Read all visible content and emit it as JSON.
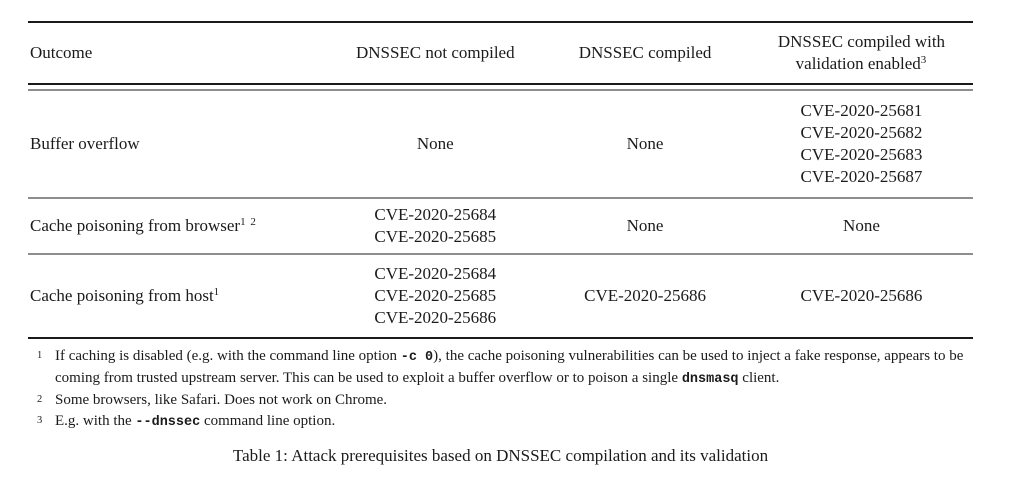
{
  "doc": {
    "caption": "Table 1: Attack prerequisites based on DNSSEC compilation and its validation"
  },
  "table": {
    "header": {
      "outcome": "Outcome",
      "not_compiled": "DNSSEC not compiled",
      "compiled": "DNSSEC compiled",
      "validation_line1": "DNSSEC compiled with",
      "validation_line2": "validation enabled",
      "validation_footnote_ref": "3"
    },
    "rows": [
      {
        "outcome": "Buffer overflow",
        "not_compiled": [
          "None"
        ],
        "compiled": [
          "None"
        ],
        "validation": [
          "CVE-2020-25681",
          "CVE-2020-25682",
          "CVE-2020-25683",
          "CVE-2020-25687"
        ]
      },
      {
        "outcome": "Cache poisoning from browser",
        "footnote_refs": "1 2",
        "not_compiled": [
          "CVE-2020-25684",
          "CVE-2020-25685"
        ],
        "compiled": [
          "None"
        ],
        "validation": [
          "None"
        ]
      },
      {
        "outcome": "Cache poisoning from host",
        "footnote_refs": "1",
        "not_compiled": [
          "CVE-2020-25684",
          "CVE-2020-25685",
          "CVE-2020-25686"
        ],
        "compiled": [
          "CVE-2020-25686"
        ],
        "validation": [
          "CVE-2020-25686"
        ]
      }
    ]
  },
  "footnotes": {
    "fn1": {
      "marker": "1",
      "text_before_code1": "If caching is disabled (e.g. with the command line option ",
      "code1": "-c 0",
      "text_middle": "), the cache poisoning vulnerabilities can be used to inject a fake response, appears to be coming from trusted upstream server. This can be used to exploit a buffer overflow or to poison a single ",
      "code2": "dnsmasq",
      "text_after": " client."
    },
    "fn2": {
      "marker": "2",
      "text": "Some browsers, like Safari. Does not work on Chrome."
    },
    "fn3": {
      "marker": "3",
      "text_before_code": "E.g. with the ",
      "code": "--dnssec",
      "text_after": " command line option."
    }
  }
}
